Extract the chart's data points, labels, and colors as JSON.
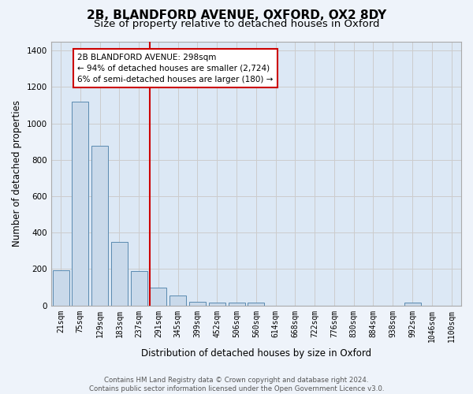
{
  "title": "2B, BLANDFORD AVENUE, OXFORD, OX2 8DY",
  "subtitle": "Size of property relative to detached houses in Oxford",
  "xlabel": "Distribution of detached houses by size in Oxford",
  "ylabel": "Number of detached properties",
  "categories": [
    "21sqm",
    "75sqm",
    "129sqm",
    "183sqm",
    "237sqm",
    "291sqm",
    "345sqm",
    "399sqm",
    "452sqm",
    "506sqm",
    "560sqm",
    "614sqm",
    "668sqm",
    "722sqm",
    "776sqm",
    "830sqm",
    "884sqm",
    "938sqm",
    "992sqm",
    "1046sqm",
    "1100sqm"
  ],
  "values": [
    195,
    1120,
    875,
    350,
    190,
    100,
    55,
    20,
    18,
    15,
    15,
    0,
    0,
    0,
    0,
    0,
    0,
    0,
    15,
    0,
    0
  ],
  "bar_color": "#c9d9ea",
  "bar_edge_color": "#5a8ab0",
  "grid_color": "#cccccc",
  "bg_color": "#dce8f5",
  "fig_bg_color": "#eef3fa",
  "red_line_color": "#cc0000",
  "annotation_text": "2B BLANDFORD AVENUE: 298sqm\n← 94% of detached houses are smaller (2,724)\n6% of semi-detached houses are larger (180) →",
  "annotation_box_color": "#cc0000",
  "ylim": [
    0,
    1450
  ],
  "footer": "Contains HM Land Registry data © Crown copyright and database right 2024.\nContains public sector information licensed under the Open Government Licence v3.0.",
  "title_fontsize": 11,
  "subtitle_fontsize": 9.5,
  "tick_fontsize": 7,
  "ylabel_fontsize": 8.5,
  "xlabel_fontsize": 8.5,
  "annotation_fontsize": 7.5
}
